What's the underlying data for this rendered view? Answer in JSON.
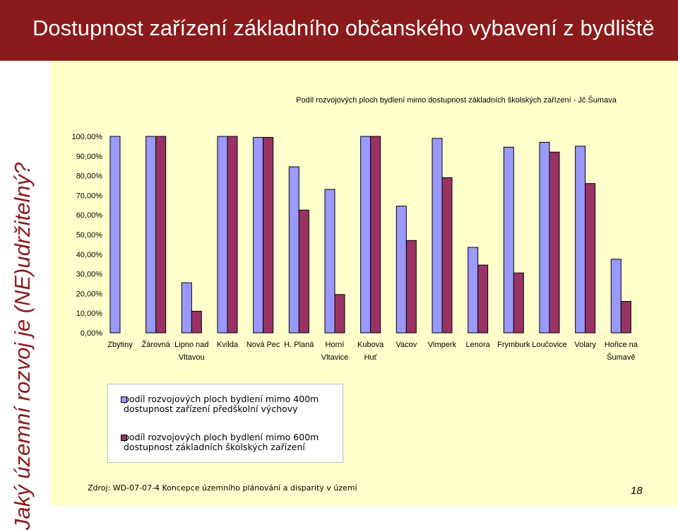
{
  "slide": {
    "title": "Dostupnost zařízení základního občanského vybavení z bydliště",
    "vertical_heading": "Jaký územní rozvoj je (NE)udržitelný?",
    "source": "Zdroj: WD-07-07-4 Koncepce územního plánování a disparity v území",
    "page_number": "18"
  },
  "colors": {
    "header_bg": "#8b1a1a",
    "content_bg": "#ffffcc",
    "series1": "#9999ff",
    "series2": "#993366"
  },
  "chart_data": {
    "type": "bar",
    "title": "Podíl rozvojových ploch bydlení mimo dostupnost základních školských zařízení - Jč Šumava",
    "categories": [
      [
        "Zbytiny"
      ],
      [
        "Žárovná"
      ],
      [
        "Lipno nad",
        "Vltavou"
      ],
      [
        "Kvilda"
      ],
      [
        "Nová Pec"
      ],
      [
        "H. Planá"
      ],
      [
        "Horní",
        "Vltavice"
      ],
      [
        "Kubova",
        "Huť"
      ],
      [
        "Vacov"
      ],
      [
        "Vimperk"
      ],
      [
        "Lenora"
      ],
      [
        "Frymburk"
      ],
      [
        "Loučovice"
      ],
      [
        "Volary"
      ],
      [
        "Hořice na",
        "Šumavě"
      ]
    ],
    "series": [
      {
        "name": "podíl rozvojových ploch bydlení mimo 400m dostupnost zařízení předškolní výchovy",
        "color": "#9999ff",
        "values": [
          100,
          100,
          25.5,
          100,
          99.5,
          84.5,
          73,
          100,
          64.5,
          99,
          43.5,
          94.5,
          97,
          95,
          37.5
        ]
      },
      {
        "name": "podíl rozvojových ploch bydlení mimo 600m dostupnost základních školských zařízení",
        "color": "#993366",
        "values": [
          null,
          100,
          11,
          100,
          99.5,
          62.5,
          19.5,
          100,
          47,
          79,
          34.5,
          30.5,
          92,
          76,
          16
        ]
      }
    ],
    "ylim": [
      0,
      100
    ],
    "yticks": [
      "0,00%",
      "10,00%",
      "20,00%",
      "30,00%",
      "40,00%",
      "50,00%",
      "60,00%",
      "70,00%",
      "80,00%",
      "90,00%",
      "100,00%"
    ],
    "legend_placement": "bottom-left",
    "grid": false
  }
}
